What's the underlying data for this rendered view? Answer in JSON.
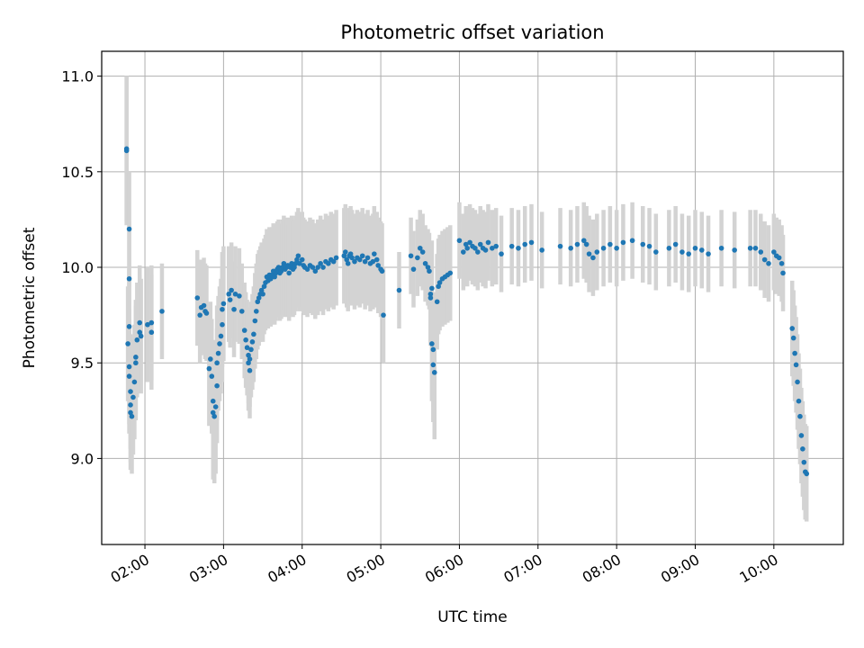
{
  "chart_data": {
    "type": "scatter",
    "title": "Photometric offset variation",
    "xlabel": "UTC time",
    "ylabel": "Photometric offset",
    "x_unit": "time of day (UTC)",
    "xlim": [
      "01:27",
      "10:53"
    ],
    "ylim": [
      8.55,
      11.13
    ],
    "grid": true,
    "errorbars": true,
    "colors": {
      "marker": "#1f77b4",
      "errorbar": "#d3d3d3"
    },
    "x_ticks": [
      {
        "t": "02:00",
        "label": "02:00"
      },
      {
        "t": "03:00",
        "label": "03:00"
      },
      {
        "t": "04:00",
        "label": "04:00"
      },
      {
        "t": "05:00",
        "label": "05:00"
      },
      {
        "t": "06:00",
        "label": "06:00"
      },
      {
        "t": "07:00",
        "label": "07:00"
      },
      {
        "t": "08:00",
        "label": "08:00"
      },
      {
        "t": "09:00",
        "label": "09:00"
      },
      {
        "t": "10:00",
        "label": "10:00"
      }
    ],
    "y_ticks": [
      {
        "v": 9.0,
        "label": "9.0"
      },
      {
        "v": 9.5,
        "label": "9.5"
      },
      {
        "v": 10.0,
        "label": "10.0"
      },
      {
        "v": 10.5,
        "label": "10.5"
      },
      {
        "v": 11.0,
        "label": "11.0"
      }
    ],
    "series": [
      {
        "points": [
          [
            "01:46",
            10.61,
            0.39
          ],
          [
            "01:46",
            10.62,
            0.38
          ],
          [
            "01:48",
            10.2,
            0.3
          ],
          [
            "01:48",
            9.94,
            0.3
          ],
          [
            "01:48",
            9.69,
            0.3
          ],
          [
            "01:47",
            9.6,
            0.3
          ],
          [
            "01:48",
            9.48,
            0.3
          ],
          [
            "01:48",
            9.43,
            0.3
          ],
          [
            "01:49",
            9.35,
            0.3
          ],
          [
            "01:49",
            9.28,
            0.3
          ],
          [
            "01:49",
            9.24,
            0.3
          ],
          [
            "01:50",
            9.22,
            0.3
          ],
          [
            "01:51",
            9.32,
            0.3
          ],
          [
            "01:52",
            9.4,
            0.3
          ],
          [
            "01:53",
            9.5,
            0.3
          ],
          [
            "01:53",
            9.53,
            0.3
          ],
          [
            "01:54",
            9.62,
            0.3
          ],
          [
            "01:56",
            9.66,
            0.3
          ],
          [
            "01:56",
            9.71,
            0.3
          ],
          [
            "01:57",
            9.64,
            0.3
          ],
          [
            "02:02",
            9.7,
            0.3
          ],
          [
            "02:05",
            9.71,
            0.3
          ],
          [
            "02:05",
            9.66,
            0.3
          ],
          [
            "02:13",
            9.77,
            0.25
          ],
          [
            "02:40",
            9.84,
            0.25
          ],
          [
            "02:42",
            9.75,
            0.25
          ],
          [
            "02:43",
            9.79,
            0.25
          ],
          [
            "02:45",
            9.8,
            0.25
          ],
          [
            "02:46",
            9.77,
            0.25
          ],
          [
            "02:47",
            9.76,
            0.25
          ],
          [
            "02:49",
            9.47,
            0.3
          ],
          [
            "02:50",
            9.52,
            0.3
          ],
          [
            "02:51",
            9.43,
            0.3
          ],
          [
            "02:52",
            9.3,
            0.3
          ],
          [
            "02:52",
            9.24,
            0.35
          ],
          [
            "02:53",
            9.22,
            0.35
          ],
          [
            "02:54",
            9.27,
            0.35
          ],
          [
            "02:55",
            9.38,
            0.3
          ],
          [
            "02:55",
            9.5,
            0.3
          ],
          [
            "02:56",
            9.55,
            0.3
          ],
          [
            "02:57",
            9.6,
            0.3
          ],
          [
            "02:58",
            9.64,
            0.3
          ],
          [
            "02:59",
            9.7,
            0.3
          ],
          [
            "02:59",
            9.78,
            0.3
          ],
          [
            "03:00",
            9.81,
            0.3
          ],
          [
            "03:04",
            9.86,
            0.25
          ],
          [
            "03:05",
            9.83,
            0.25
          ],
          [
            "03:06",
            9.88,
            0.25
          ],
          [
            "03:08",
            9.78,
            0.25
          ],
          [
            "03:09",
            9.86,
            0.25
          ],
          [
            "03:12",
            9.85,
            0.25
          ],
          [
            "03:14",
            9.77,
            0.25
          ],
          [
            "03:16",
            9.67,
            0.25
          ],
          [
            "03:17",
            9.62,
            0.25
          ],
          [
            "03:18",
            9.58,
            0.25
          ],
          [
            "03:19",
            9.54,
            0.25
          ],
          [
            "03:19",
            9.5,
            0.25
          ],
          [
            "03:20",
            9.46,
            0.25
          ],
          [
            "03:20",
            9.52,
            0.25
          ],
          [
            "03:21",
            9.57,
            0.25
          ],
          [
            "03:22",
            9.61,
            0.25
          ],
          [
            "03:23",
            9.65,
            0.25
          ],
          [
            "03:24",
            9.72,
            0.25
          ],
          [
            "03:25",
            9.77,
            0.25
          ],
          [
            "03:26",
            9.82,
            0.25
          ],
          [
            "03:27",
            9.84,
            0.25
          ],
          [
            "03:28",
            9.86,
            0.25
          ],
          [
            "03:29",
            9.88,
            0.25
          ],
          [
            "03:30",
            9.86,
            0.25
          ],
          [
            "03:31",
            9.9,
            0.25
          ],
          [
            "03:32",
            9.92,
            0.25
          ],
          [
            "03:33",
            9.95,
            0.25
          ],
          [
            "03:34",
            9.93,
            0.25
          ],
          [
            "03:35",
            9.96,
            0.25
          ],
          [
            "03:36",
            9.94,
            0.25
          ],
          [
            "03:37",
            9.96,
            0.25
          ],
          [
            "03:38",
            9.98,
            0.25
          ],
          [
            "03:39",
            9.95,
            0.25
          ],
          [
            "03:40",
            9.97,
            0.25
          ],
          [
            "03:41",
            9.99,
            0.25
          ],
          [
            "03:42",
            10.0,
            0.25
          ],
          [
            "03:43",
            9.97,
            0.25
          ],
          [
            "03:44",
            9.98,
            0.25
          ],
          [
            "03:45",
            10.0,
            0.25
          ],
          [
            "03:46",
            10.02,
            0.25
          ],
          [
            "03:47",
            9.99,
            0.25
          ],
          [
            "03:48",
            10.0,
            0.25
          ],
          [
            "03:49",
            10.01,
            0.25
          ],
          [
            "03:50",
            9.97,
            0.25
          ],
          [
            "03:51",
            10.0,
            0.25
          ],
          [
            "03:52",
            10.02,
            0.25
          ],
          [
            "03:53",
            9.99,
            0.25
          ],
          [
            "03:54",
            10.0,
            0.25
          ],
          [
            "03:55",
            10.02,
            0.25
          ],
          [
            "03:56",
            10.04,
            0.25
          ],
          [
            "03:57",
            10.06,
            0.25
          ],
          [
            "03:58",
            10.02,
            0.25
          ],
          [
            "04:00",
            10.04,
            0.25
          ],
          [
            "04:01",
            10.01,
            0.25
          ],
          [
            "04:02",
            10.0,
            0.25
          ],
          [
            "04:04",
            9.99,
            0.25
          ],
          [
            "04:06",
            10.01,
            0.25
          ],
          [
            "04:08",
            10.0,
            0.25
          ],
          [
            "04:10",
            9.98,
            0.25
          ],
          [
            "04:12",
            10.0,
            0.25
          ],
          [
            "04:14",
            10.02,
            0.25
          ],
          [
            "04:16",
            10.0,
            0.25
          ],
          [
            "04:18",
            10.03,
            0.25
          ],
          [
            "04:20",
            10.02,
            0.25
          ],
          [
            "04:22",
            10.04,
            0.25
          ],
          [
            "04:24",
            10.03,
            0.25
          ],
          [
            "04:26",
            10.05,
            0.25
          ],
          [
            "04:32",
            10.06,
            0.25
          ],
          [
            "04:33",
            10.08,
            0.25
          ],
          [
            "04:34",
            10.04,
            0.25
          ],
          [
            "04:35",
            10.02,
            0.25
          ],
          [
            "04:36",
            10.06,
            0.25
          ],
          [
            "04:37",
            10.07,
            0.25
          ],
          [
            "04:38",
            10.05,
            0.25
          ],
          [
            "04:40",
            10.03,
            0.25
          ],
          [
            "04:42",
            10.05,
            0.25
          ],
          [
            "04:44",
            10.04,
            0.25
          ],
          [
            "04:46",
            10.06,
            0.25
          ],
          [
            "04:48",
            10.03,
            0.25
          ],
          [
            "04:50",
            10.05,
            0.25
          ],
          [
            "04:52",
            10.02,
            0.25
          ],
          [
            "04:54",
            10.03,
            0.25
          ],
          [
            "04:55",
            10.07,
            0.25
          ],
          [
            "04:57",
            10.04,
            0.25
          ],
          [
            "04:58",
            10.01,
            0.25
          ],
          [
            "05:00",
            9.99,
            0.25
          ],
          [
            "05:01",
            9.98,
            0.25
          ],
          [
            "05:02",
            9.75,
            0.25
          ],
          [
            "05:14",
            9.88,
            0.2
          ],
          [
            "05:23",
            10.06,
            0.2
          ],
          [
            "05:25",
            9.99,
            0.2
          ],
          [
            "05:28",
            10.05,
            0.2
          ],
          [
            "05:30",
            10.1,
            0.2
          ],
          [
            "05:32",
            10.08,
            0.2
          ],
          [
            "05:34",
            10.02,
            0.2
          ],
          [
            "05:36",
            10.0,
            0.2
          ],
          [
            "05:37",
            9.98,
            0.2
          ],
          [
            "05:38",
            9.86,
            0.25
          ],
          [
            "05:38",
            9.84,
            0.25
          ],
          [
            "05:39",
            9.89,
            0.25
          ],
          [
            "05:39",
            9.6,
            0.3
          ],
          [
            "05:40",
            9.57,
            0.3
          ],
          [
            "05:40",
            9.49,
            0.3
          ],
          [
            "05:41",
            9.45,
            0.35
          ],
          [
            "05:43",
            9.82,
            0.25
          ],
          [
            "05:44",
            9.9,
            0.25
          ],
          [
            "05:45",
            9.92,
            0.25
          ],
          [
            "05:47",
            9.94,
            0.25
          ],
          [
            "05:49",
            9.95,
            0.25
          ],
          [
            "05:51",
            9.96,
            0.25
          ],
          [
            "05:53",
            9.97,
            0.25
          ],
          [
            "06:00",
            10.14,
            0.2
          ],
          [
            "06:03",
            10.08,
            0.2
          ],
          [
            "06:05",
            10.12,
            0.2
          ],
          [
            "06:06",
            10.1,
            0.2
          ],
          [
            "06:08",
            10.13,
            0.2
          ],
          [
            "06:10",
            10.11,
            0.2
          ],
          [
            "06:12",
            10.1,
            0.2
          ],
          [
            "06:14",
            10.08,
            0.2
          ],
          [
            "06:16",
            10.12,
            0.2
          ],
          [
            "06:18",
            10.1,
            0.2
          ],
          [
            "06:20",
            10.09,
            0.2
          ],
          [
            "06:22",
            10.13,
            0.2
          ],
          [
            "06:25",
            10.1,
            0.2
          ],
          [
            "06:28",
            10.11,
            0.2
          ],
          [
            "06:32",
            10.07,
            0.2
          ],
          [
            "06:40",
            10.11,
            0.2
          ],
          [
            "06:45",
            10.1,
            0.2
          ],
          [
            "06:50",
            10.12,
            0.2
          ],
          [
            "06:55",
            10.13,
            0.2
          ],
          [
            "07:03",
            10.09,
            0.2
          ],
          [
            "07:17",
            10.11,
            0.2
          ],
          [
            "07:25",
            10.1,
            0.2
          ],
          [
            "07:30",
            10.12,
            0.2
          ],
          [
            "07:35",
            10.14,
            0.2
          ],
          [
            "07:37",
            10.12,
            0.2
          ],
          [
            "07:39",
            10.07,
            0.2
          ],
          [
            "07:42",
            10.05,
            0.2
          ],
          [
            "07:45",
            10.08,
            0.2
          ],
          [
            "07:50",
            10.1,
            0.2
          ],
          [
            "07:55",
            10.12,
            0.2
          ],
          [
            "08:00",
            10.1,
            0.2
          ],
          [
            "08:05",
            10.13,
            0.2
          ],
          [
            "08:12",
            10.14,
            0.2
          ],
          [
            "08:20",
            10.12,
            0.2
          ],
          [
            "08:25",
            10.11,
            0.2
          ],
          [
            "08:30",
            10.08,
            0.2
          ],
          [
            "08:40",
            10.1,
            0.2
          ],
          [
            "08:45",
            10.12,
            0.2
          ],
          [
            "08:50",
            10.08,
            0.2
          ],
          [
            "08:55",
            10.07,
            0.2
          ],
          [
            "09:00",
            10.1,
            0.2
          ],
          [
            "09:05",
            10.09,
            0.2
          ],
          [
            "09:10",
            10.07,
            0.2
          ],
          [
            "09:20",
            10.1,
            0.2
          ],
          [
            "09:30",
            10.09,
            0.2
          ],
          [
            "09:42",
            10.1,
            0.2
          ],
          [
            "09:46",
            10.1,
            0.2
          ],
          [
            "09:50",
            10.08,
            0.2
          ],
          [
            "09:53",
            10.04,
            0.2
          ],
          [
            "09:56",
            10.02,
            0.2
          ],
          [
            "10:00",
            10.08,
            0.2
          ],
          [
            "10:02",
            10.06,
            0.2
          ],
          [
            "10:04",
            10.05,
            0.2
          ],
          [
            "10:06",
            10.02,
            0.2
          ],
          [
            "10:07",
            9.97,
            0.2
          ],
          [
            "10:14",
            9.68,
            0.25
          ],
          [
            "10:15",
            9.63,
            0.25
          ],
          [
            "10:16",
            9.55,
            0.25
          ],
          [
            "10:17",
            9.49,
            0.25
          ],
          [
            "10:18",
            9.4,
            0.25
          ],
          [
            "10:19",
            9.3,
            0.25
          ],
          [
            "10:20",
            9.22,
            0.25
          ],
          [
            "10:21",
            9.12,
            0.25
          ],
          [
            "10:22",
            9.05,
            0.25
          ],
          [
            "10:23",
            8.98,
            0.25
          ],
          [
            "10:24",
            8.93,
            0.25
          ],
          [
            "10:25",
            8.92,
            0.25
          ]
        ]
      }
    ]
  }
}
